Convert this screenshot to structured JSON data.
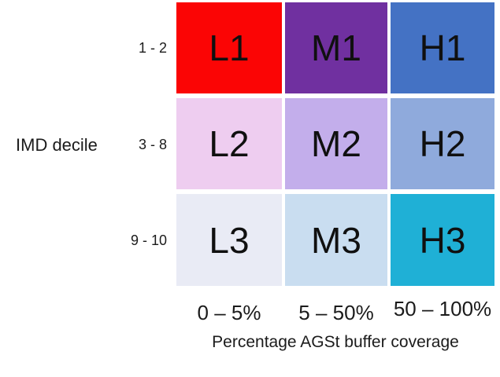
{
  "chart_data": {
    "type": "heatmap",
    "xlabel": "Percentage AGSt buffer coverage",
    "ylabel": "IMD decile",
    "columns": [
      "0 – 5%",
      "5 – 50%",
      "50 – 100%"
    ],
    "rows": [
      {
        "label": "1 - 2",
        "cells": [
          {
            "code": "L1",
            "color": "#FB0505"
          },
          {
            "code": "M1",
            "color": "#7030A0"
          },
          {
            "code": "H1",
            "color": "#4472C4"
          }
        ]
      },
      {
        "label": "3 - 8",
        "cells": [
          {
            "code": "L2",
            "color": "#EECDF0"
          },
          {
            "code": "M2",
            "color": "#C3AEEB"
          },
          {
            "code": "H2",
            "color": "#8FAADC"
          }
        ]
      },
      {
        "label": "9 - 10",
        "cells": [
          {
            "code": "L3",
            "color": "#E9EBF5"
          },
          {
            "code": "M3",
            "color": "#C9DDF0"
          },
          {
            "code": "H3",
            "color": "#1FB0D6"
          }
        ]
      }
    ],
    "layout": {
      "legend": "none",
      "grid_gaps": "white gaps between cells",
      "background": "#FFFFFF",
      "text_color": "#1B1B1B"
    }
  }
}
